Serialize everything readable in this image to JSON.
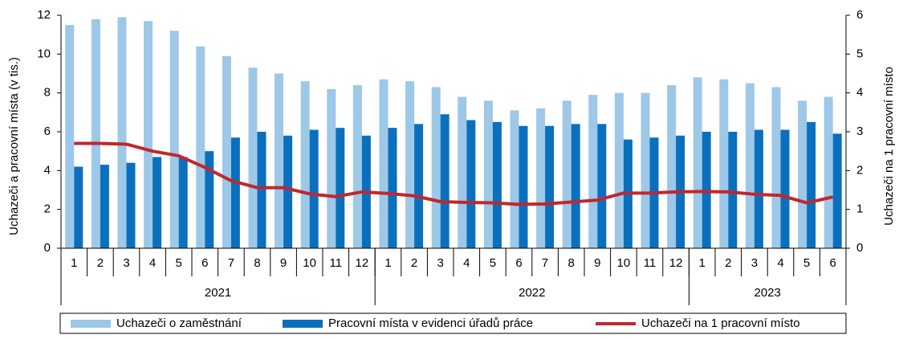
{
  "chart_data": {
    "type": "bar-line",
    "y_label": "Uchazeči a pracovní místa (v tis.)",
    "y2_label": "Uchazeči na 1 pracovní místo",
    "categories": [
      "1",
      "2",
      "3",
      "4",
      "5",
      "6",
      "7",
      "8",
      "9",
      "10",
      "11",
      "12",
      "1",
      "2",
      "3",
      "4",
      "5",
      "6",
      "7",
      "8",
      "9",
      "10",
      "11",
      "12",
      "1",
      "2",
      "3",
      "4",
      "5",
      "6"
    ],
    "category_groups": [
      {
        "label": "2021",
        "size": 12
      },
      {
        "label": "2022",
        "size": 12
      },
      {
        "label": "2023",
        "size": 6
      }
    ],
    "series": [
      {
        "name": "Uchazeči o zaměstnání",
        "type": "bar",
        "color": "#9dc8e8",
        "values": [
          11.5,
          11.8,
          11.9,
          11.7,
          11.2,
          10.4,
          9.9,
          9.3,
          9.0,
          8.6,
          8.2,
          8.4,
          8.7,
          8.6,
          8.3,
          7.8,
          7.6,
          7.1,
          7.2,
          7.6,
          7.9,
          8.0,
          8.0,
          8.4,
          8.8,
          8.7,
          8.5,
          8.3,
          7.6,
          7.8
        ]
      },
      {
        "name": "Pracovní místa v evidenci úřadů práce",
        "type": "bar",
        "color": "#0a70bd",
        "values": [
          4.2,
          4.3,
          4.4,
          4.7,
          4.7,
          5.0,
          5.7,
          6.0,
          5.8,
          6.1,
          6.2,
          5.8,
          6.2,
          6.4,
          6.9,
          6.6,
          6.5,
          6.3,
          6.3,
          6.4,
          6.4,
          5.6,
          5.7,
          5.8,
          6.0,
          6.0,
          6.1,
          6.1,
          6.5,
          5.9
        ]
      },
      {
        "name": "Uchazeči na 1 pracovní místo",
        "type": "line",
        "axis": "y2",
        "color": "#c1272d",
        "values": [
          2.7,
          2.7,
          2.68,
          2.5,
          2.38,
          2.08,
          1.74,
          1.56,
          1.56,
          1.4,
          1.33,
          1.45,
          1.41,
          1.35,
          1.2,
          1.18,
          1.17,
          1.13,
          1.14,
          1.19,
          1.24,
          1.42,
          1.42,
          1.45,
          1.46,
          1.45,
          1.39,
          1.36,
          1.17,
          1.32
        ]
      }
    ],
    "ylim": [
      0,
      12
    ],
    "yticks": [
      0,
      2,
      4,
      6,
      8,
      10,
      12
    ],
    "y2lim": [
      0,
      6
    ],
    "y2ticks": [
      0,
      1,
      2,
      3,
      4,
      5,
      6
    ],
    "grid": false
  }
}
